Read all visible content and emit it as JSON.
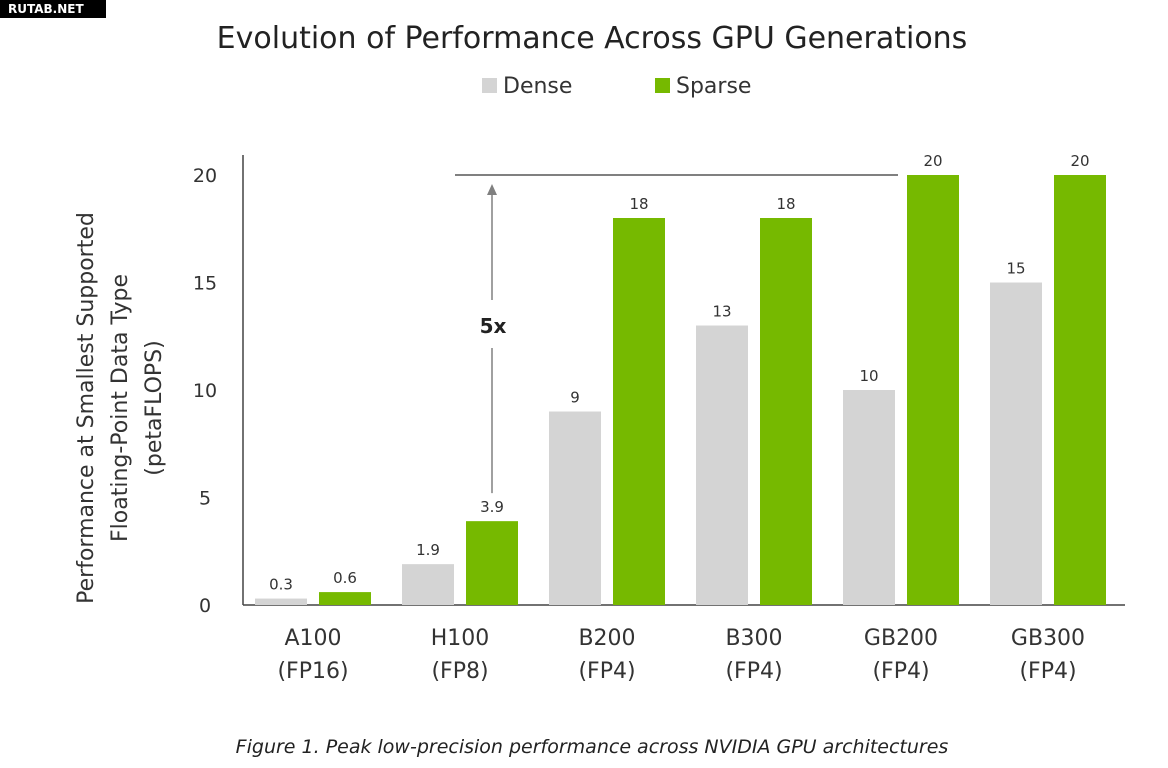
{
  "watermark": "RUTAB.NET",
  "caption": "Figure 1. Peak low-precision performance across NVIDIA GPU architectures",
  "colors": {
    "dense": "#d4d4d4",
    "sparse": "#76b900",
    "axis": "#444444",
    "text": "#222222",
    "annotation": "#808080"
  },
  "chart_data": {
    "type": "bar",
    "title": "Evolution of Performance Across GPU Generations",
    "ylabel_lines": [
      "Performance at Smallest Supported",
      "Floating-Point  Data Type",
      "(petaFLOPS)"
    ],
    "xlabel": "",
    "ylim": [
      0,
      20
    ],
    "yticks": [
      0,
      5,
      10,
      15,
      20
    ],
    "grid": false,
    "legend_position": "top-center",
    "categories": [
      {
        "name": "A100",
        "dtype": "(FP16)"
      },
      {
        "name": "H100",
        "dtype": "(FP8)"
      },
      {
        "name": "B200",
        "dtype": "(FP4)"
      },
      {
        "name": "B300",
        "dtype": "(FP4)"
      },
      {
        "name": "GB200",
        "dtype": "(FP4)"
      },
      {
        "name": "GB300",
        "dtype": "(FP4)"
      }
    ],
    "series": [
      {
        "name": "Dense",
        "values": [
          0.3,
          1.9,
          9,
          13,
          10,
          15
        ],
        "labels": [
          "0.3",
          "1.9",
          "9",
          "13",
          "10",
          "15"
        ]
      },
      {
        "name": "Sparse",
        "values": [
          0.6,
          3.9,
          18,
          18,
          20,
          20
        ],
        "labels": [
          "0.6",
          "3.9",
          "18",
          "18",
          "20",
          "20"
        ]
      }
    ],
    "annotation": {
      "label": "5x",
      "from_value": 3.9,
      "to_value": 20,
      "from_category": "H100",
      "to_category": "GB200"
    }
  }
}
